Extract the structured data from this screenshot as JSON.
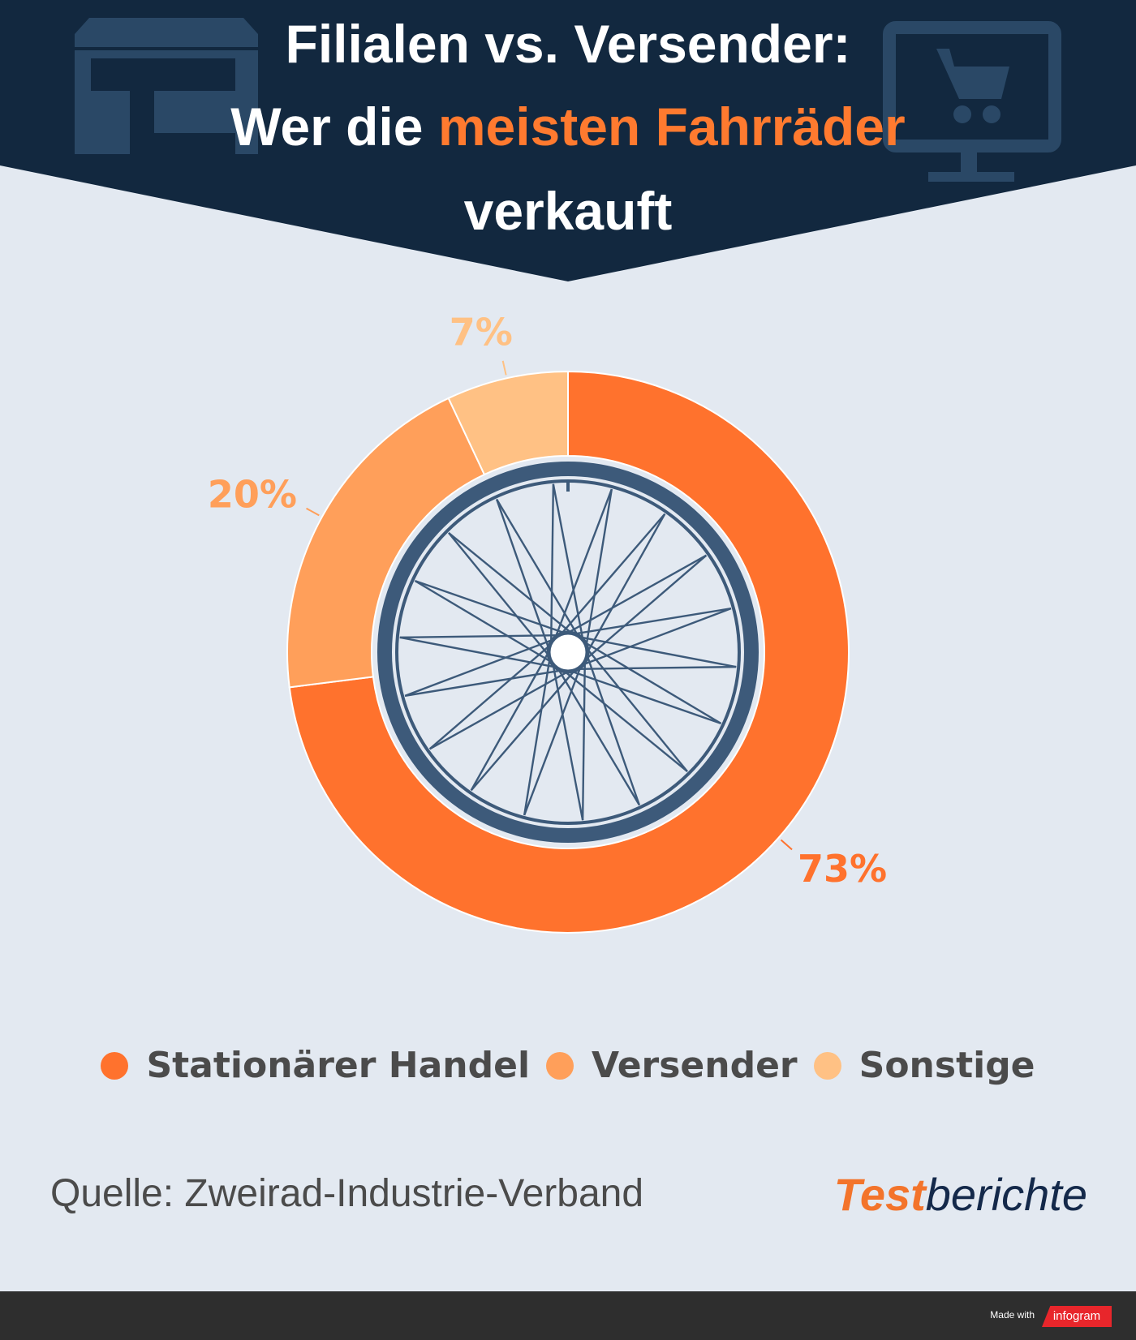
{
  "header": {
    "title_line1": "Filialen vs. Versender:",
    "title_line2_pre": "Wer die ",
    "title_line2_accent": "meisten Fahrräder",
    "title_line3": "verkauft",
    "bg_color": "#12283f",
    "accent_color": "#ff7a2f",
    "icon_left": "store-icon",
    "icon_right": "shopping-cart-monitor-icon"
  },
  "chart_data": {
    "type": "pie",
    "variant": "donut",
    "title": "Filialen vs. Versender: Wer die meisten Fahrräder verkauft",
    "categories": [
      "Stationärer Handel",
      "Versender",
      "Sonstige"
    ],
    "values": [
      73,
      20,
      7
    ],
    "labels": [
      "73%",
      "20%",
      "7%"
    ],
    "colors": [
      "#ff722d",
      "#ff9f5a",
      "#ffc184"
    ],
    "center_icon": "bicycle-wheel-icon",
    "legend_position": "bottom"
  },
  "legend": {
    "items": [
      {
        "label": "Stationärer Handel",
        "color": "#ff722d"
      },
      {
        "label": "Versender",
        "color": "#ff9f5a"
      },
      {
        "label": "Sonstige",
        "color": "#ffc184"
      }
    ]
  },
  "source": "Quelle: Zweirad-Industrie-Verband",
  "logo": {
    "part1": "Test",
    "part2": "berichte"
  },
  "footer": {
    "made_with": "Made with",
    "brand": "infogram"
  }
}
